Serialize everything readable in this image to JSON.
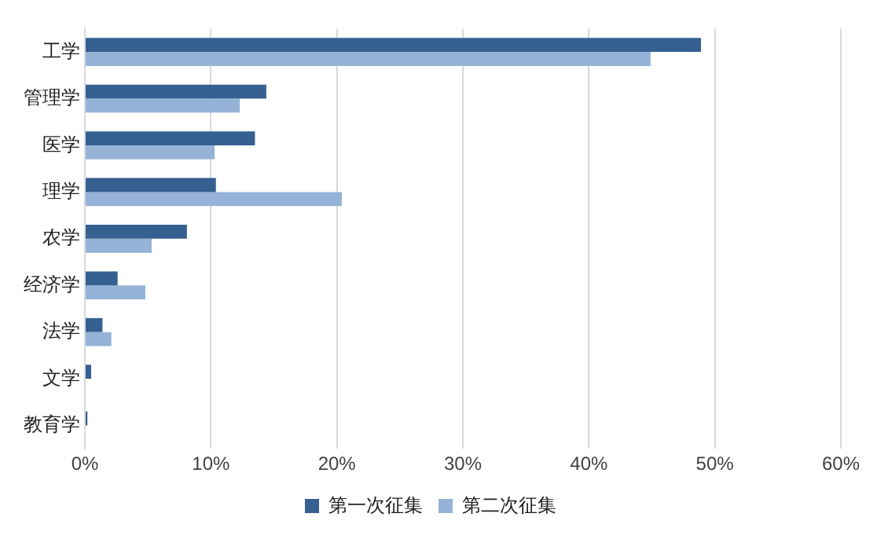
{
  "chart_data": {
    "type": "bar",
    "orientation": "horizontal",
    "categories": [
      "工学",
      "管理学",
      "医学",
      "理学",
      "农学",
      "经济学",
      "法学",
      "文学",
      "教育学"
    ],
    "series": [
      {
        "name": "第一次征集",
        "color": "#366092",
        "values": [
          48.9,
          14.4,
          13.5,
          10.4,
          8.1,
          2.6,
          1.4,
          0.5,
          0.2
        ]
      },
      {
        "name": "第二次征集",
        "color": "#95b3d7",
        "values": [
          44.9,
          12.3,
          10.3,
          20.4,
          5.3,
          4.8,
          2.1,
          0,
          0
        ]
      }
    ],
    "xlim": [
      0,
      60
    ],
    "xticks": [
      {
        "value": 0,
        "label": "0%"
      },
      {
        "value": 10,
        "label": "10%"
      },
      {
        "value": 20,
        "label": "20%"
      },
      {
        "value": 30,
        "label": "30%"
      },
      {
        "value": 40,
        "label": "40%"
      },
      {
        "value": 50,
        "label": "50%"
      },
      {
        "value": 60,
        "label": "60%"
      }
    ],
    "grid": "x",
    "legend": "bottom"
  }
}
